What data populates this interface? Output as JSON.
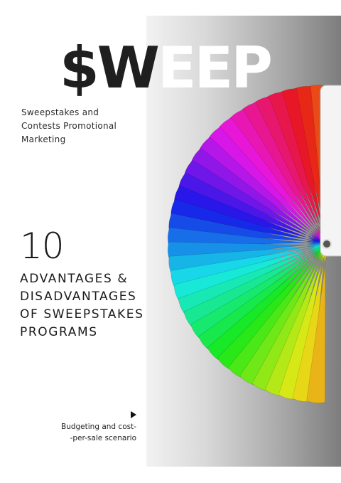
{
  "brand": {
    "prefix": "$W",
    "suffix": "EEP"
  },
  "tagline": [
    "Sweepstakes and",
    "Contests Promotional",
    "Marketing"
  ],
  "headline": {
    "number": "10",
    "lines": [
      "ADVANTAGES &",
      "DISADVANTAGES",
      "OF SWEEPSTAKES",
      "PROGRAMS"
    ]
  },
  "footer": {
    "lines": [
      "Budgeting and cost-",
      "-per-sale scenario"
    ]
  },
  "colors": {
    "dark_text": "#1f1f1f",
    "fan_hues": [
      "red",
      "orange",
      "yellow",
      "green",
      "teal",
      "blue",
      "indigo",
      "violet",
      "magenta",
      "red"
    ]
  },
  "icons": {
    "play": "play-triangle-icon",
    "fan": "color-swatch-fan-icon"
  }
}
